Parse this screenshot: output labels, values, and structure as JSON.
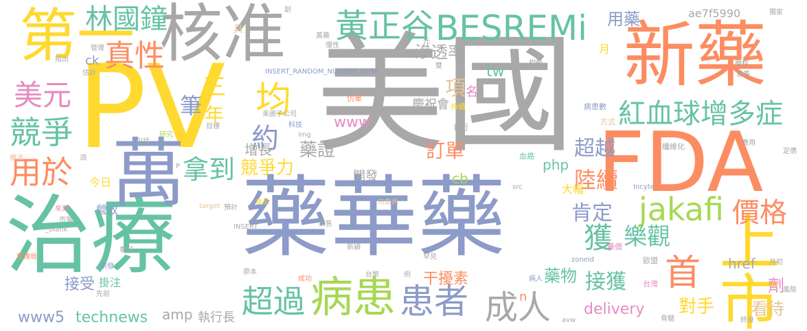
{
  "palette": {
    "gray": "#a8a8a8",
    "slate": "#8c9bc8",
    "yellow": "#ffd92f",
    "orange": "#fc8d62",
    "green": "#66c2a5",
    "lime": "#a6d854",
    "pink": "#e78ac3",
    "tan": "#e5c494"
  },
  "words": [
    {
      "id": "mei-guo",
      "text": "美國",
      "color": "#a8a8a8"
    },
    {
      "id": "pv",
      "text": "PV",
      "color": "#ffd92f"
    },
    {
      "id": "yao-hua-yao",
      "text": "藥華藥",
      "color": "#8c9bc8"
    },
    {
      "id": "zhi-liao",
      "text": "治療",
      "color": "#66c2a5"
    },
    {
      "id": "fda",
      "text": "FDA",
      "color": "#fc8d62"
    },
    {
      "id": "he-zhun",
      "text": "核准",
      "color": "#a8a8a8"
    },
    {
      "id": "xin-yao",
      "text": "新藥",
      "color": "#fc8d62"
    },
    {
      "id": "di-yi",
      "text": "第一",
      "color": "#ffd92f"
    },
    {
      "id": "wan",
      "text": "萬",
      "color": "#8c9bc8"
    },
    {
      "id": "shang-shi",
      "text": "上市",
      "color": "#ffd92f"
    },
    {
      "id": "besremi",
      "text": "BESREMi",
      "color": "#66c2a5"
    },
    {
      "id": "huang-zheng-gu",
      "text": "黃正谷",
      "color": "#66c2a5"
    },
    {
      "id": "bing-huan",
      "text": "病患",
      "color": "#a6d854"
    },
    {
      "id": "huan-zhe",
      "text": "患者",
      "color": "#8c9bc8"
    },
    {
      "id": "hong-xue-qiu",
      "text": "紅血球增多症",
      "color": "#66c2a5"
    },
    {
      "id": "jakafi",
      "text": "jakafi",
      "color": "#a6d854"
    },
    {
      "id": "lin-guo-zhong",
      "text": "林國鐘",
      "color": "#66c2a5"
    },
    {
      "id": "zhen-xing",
      "text": "真性",
      "color": "#fc8d62"
    },
    {
      "id": "mei-yuan",
      "text": "美元",
      "color": "#e78ac3"
    },
    {
      "id": "jing-zheng",
      "text": "競爭",
      "color": "#66c2a5"
    },
    {
      "id": "yong-yu",
      "text": "用於",
      "color": "#fc8d62"
    },
    {
      "id": "chao-guo",
      "text": "超過",
      "color": "#66c2a5"
    },
    {
      "id": "cheng-ren",
      "text": "成人",
      "color": "#a8a8a8"
    },
    {
      "id": "na-dao",
      "text": "拿到",
      "color": "#66c2a5"
    },
    {
      "id": "jun",
      "text": "均",
      "color": "#ffd92f"
    },
    {
      "id": "yue",
      "text": "約",
      "color": "#8c9bc8"
    },
    {
      "id": "san",
      "text": "三",
      "color": "#ffd92f"
    },
    {
      "id": "nian",
      "text": "年",
      "color": "#ffd92f"
    },
    {
      "id": "bi",
      "text": "筆",
      "color": "#8c9bc8"
    },
    {
      "id": "jia-ge",
      "text": "價格",
      "color": "#fc8d62"
    },
    {
      "id": "huo",
      "text": "獲",
      "color": "#66c2a5"
    },
    {
      "id": "ken-ding",
      "text": "肯定",
      "color": "#8c9bc8"
    },
    {
      "id": "le-guan",
      "text": "樂觀",
      "color": "#66c2a5"
    },
    {
      "id": "lu-xu",
      "text": "陸續",
      "color": "#fc8d62"
    },
    {
      "id": "chao-yue",
      "text": "超越",
      "color": "#8c9bc8"
    },
    {
      "id": "ding-dan",
      "text": "訂單",
      "color": "#fc8d62"
    },
    {
      "id": "jing-zheng-li",
      "text": "競爭力",
      "color": "#ffd92f"
    },
    {
      "id": "yao-zheng",
      "text": "藥證",
      "color": "#a8a8a8"
    },
    {
      "id": "zeng-zhang",
      "text": "增長",
      "color": "#a8a8a8"
    },
    {
      "id": "www",
      "text": "www",
      "color": "#e78ac3"
    },
    {
      "id": "xiang",
      "text": "項",
      "color": "#e5c494"
    },
    {
      "id": "shen-tou-lu",
      "text": "滲透率",
      "color": "#a8a8a8"
    },
    {
      "id": "tw",
      "text": "tw",
      "color": "#66c2a5"
    },
    {
      "id": "yong-yao",
      "text": "用藥",
      "color": "#8c9bc8"
    },
    {
      "id": "ae7f",
      "text": "ae7f5990",
      "color": "#a8a8a8"
    },
    {
      "id": "jie-huo",
      "text": "接獲",
      "color": "#66c2a5"
    },
    {
      "id": "shou",
      "text": "首",
      "color": "#fc8d62"
    },
    {
      "id": "dui-shou",
      "text": "對手",
      "color": "#ffd92f"
    },
    {
      "id": "kan-dai",
      "text": "看待",
      "color": "#e5c494"
    },
    {
      "id": "delivery",
      "text": "delivery",
      "color": "#e78ac3"
    },
    {
      "id": "yao-wu",
      "text": "藥物",
      "color": "#66c2a5"
    },
    {
      "id": "gan-rao-su",
      "text": "干擾素",
      "color": "#fc8d62"
    },
    {
      "id": "technews",
      "text": "technews",
      "color": "#66c2a5"
    },
    {
      "id": "www5",
      "text": "www5",
      "color": "#8c9bc8"
    },
    {
      "id": "amp",
      "text": "amp",
      "color": "#a8a8a8"
    },
    {
      "id": "zhi-xing-zhang",
      "text": "執行長",
      "color": "#a8a8a8"
    },
    {
      "id": "jie-shou",
      "text": "接受",
      "color": "#8c9bc8"
    },
    {
      "id": "gua-zhu",
      "text": "掛注",
      "color": "#66c2a5"
    },
    {
      "id": "php",
      "text": "php",
      "color": "#66c2a5"
    },
    {
      "id": "cb",
      "text": "cb",
      "color": "#a6d854"
    },
    {
      "id": "kai-fa",
      "text": "開發",
      "color": "#a8a8a8"
    },
    {
      "id": "qing-zhu-hui",
      "text": "慶祝會",
      "color": "#a8a8a8"
    },
    {
      "id": "href",
      "text": "href",
      "color": "#a8a8a8"
    },
    {
      "id": "ji",
      "text": "劑",
      "color": "#e78ac3"
    },
    {
      "id": "ming",
      "text": "名",
      "color": "#e78ac3"
    },
    {
      "id": "yue-month",
      "text": "月",
      "color": "#ffd92f"
    },
    {
      "id": "ck",
      "text": "ck",
      "color": "#8c9bc8"
    },
    {
      "id": "da-fu",
      "text": "大幅",
      "color": "#ffd92f"
    },
    {
      "id": "jin-ri",
      "text": "今日",
      "color": "#ffd92f"
    },
    {
      "id": "ying-shou",
      "text": "營收",
      "color": "#8c9bc8"
    },
    {
      "id": "a-letter",
      "text": "a",
      "color": "#66c2a5"
    },
    {
      "id": "n-letter",
      "text": "n",
      "color": "#fc8d62"
    },
    {
      "id": "insert-random",
      "text": "INSERT_RANDOM_NUMBER_HERE",
      "color": "#8c9bc8"
    },
    {
      "id": "mei-guo-zi-gong-si",
      "text": "美國子公司",
      "color": "#a8a8a8"
    },
    {
      "id": "ke-ji",
      "text": "科技",
      "color": "#8c9bc8"
    },
    {
      "id": "img",
      "text": "img",
      "color": "#a8a8a8"
    },
    {
      "id": "fang-yao",
      "text": "仿單",
      "color": "#fc8d62"
    },
    {
      "id": "chi-xu",
      "text": "持續",
      "color": "#ffd92f"
    },
    {
      "id": "zi-xing",
      "text": "自行",
      "color": "#a8a8a8"
    },
    {
      "id": "bing-hua-shu",
      "text": "病患數",
      "color": "#8c9bc8"
    },
    {
      "id": "fang-shi",
      "text": "方式",
      "color": "#e5c494"
    },
    {
      "id": "xian-wei-hua",
      "text": "纖維化",
      "color": "#a8a8a8"
    },
    {
      "id": "gui-fei",
      "text": "費用",
      "color": "#a8a8a8"
    },
    {
      "id": "ding-jia",
      "text": "定價",
      "color": "#a8a8a8"
    },
    {
      "id": "xue-ai",
      "text": "血癌",
      "color": "#66c2a5"
    },
    {
      "id": "src",
      "text": "src",
      "color": "#a8a8a8"
    },
    {
      "id": "incyte",
      "text": "Incyte",
      "color": "#8c9bc8"
    },
    {
      "id": "zoneid",
      "text": "zoneid",
      "color": "#8c9bc8"
    },
    {
      "id": "yao-jia",
      "text": "藥價",
      "color": "#e78ac3"
    },
    {
      "id": "ou-meng",
      "text": "歐盟",
      "color": "#a8a8a8"
    },
    {
      "id": "tai-wan",
      "text": "台灣",
      "color": "#e78ac3"
    },
    {
      "id": "mu-biao",
      "text": "目標",
      "color": "#a8a8a8"
    },
    {
      "id": "bao-kuo",
      "text": "包括",
      "color": "#a8a8a8"
    },
    {
      "id": "liao-fa",
      "text": "療法",
      "color": "#e5c494"
    },
    {
      "id": "yan-jiu",
      "text": "研究",
      "color": "#a6d854"
    },
    {
      "id": "lai-yuan",
      "text": "來源",
      "color": "#e78ac3"
    },
    {
      "id": "shi-chang",
      "text": "市場",
      "color": "#a8a8a8"
    },
    {
      "id": "target",
      "text": "target",
      "color": "#e5c494"
    },
    {
      "id": "yu-ji",
      "text": "預計",
      "color": "#a8a8a8"
    },
    {
      "id": "shi-pin",
      "text": "食品",
      "color": "#ffd92f"
    },
    {
      "id": "bai-xue-bing",
      "text": "白血病",
      "color": "#e5c494"
    },
    {
      "id": "blank",
      "text": "_blank",
      "color": "#a8a8a8"
    },
    {
      "id": "insert",
      "text": "INSERT",
      "color": "#a8a8a8"
    },
    {
      "id": "guan-li-ju",
      "text": "管理局",
      "color": "#fc8d62"
    },
    {
      "id": "kan-hao",
      "text": "看好",
      "color": "#a8a8a8"
    },
    {
      "id": "yan-fa",
      "text": "研發",
      "color": "#8c9bc8"
    },
    {
      "id": "xian-qian",
      "text": "先前",
      "color": "#a8a8a8"
    },
    {
      "id": "yuan-ben",
      "text": "原本",
      "color": "#a8a8a8"
    },
    {
      "id": "cheng-gong",
      "text": "成功",
      "color": "#fc8d62"
    },
    {
      "id": "tai-jing",
      "text": "台幣",
      "color": "#a8a8a8"
    },
    {
      "id": "bing-ren",
      "text": "病人",
      "color": "#8c9bc8"
    },
    {
      "id": "han-jian",
      "text": "罕見",
      "color": "#a8a8a8"
    },
    {
      "id": "xin-zhi",
      "text": "新穎",
      "color": "#a8a8a8"
    },
    {
      "id": "xiao-shou",
      "text": "銷售",
      "color": "#a8a8a8"
    },
    {
      "id": "zhi-chu",
      "text": "指出",
      "color": "#a8a8a8"
    },
    {
      "id": "gu-ji",
      "text": "估計",
      "color": "#a8a8a8"
    },
    {
      "id": "guan-li",
      "text": "管理",
      "color": "#a8a8a8"
    },
    {
      "id": "xiang-jiao",
      "text": "相較",
      "color": "#a8a8a8"
    },
    {
      "id": "liao-cheng",
      "text": "療程",
      "color": "#a8a8a8"
    },
    {
      "id": "hui-yi",
      "text": "意義",
      "color": "#a8a8a8"
    },
    {
      "id": "gu-sui",
      "text": "骨髓",
      "color": "#a8a8a8"
    },
    {
      "id": "zhong-shen",
      "text": "終身",
      "color": "#a8a8a8"
    },
    {
      "id": "feng-xian",
      "text": "風險",
      "color": "#a8a8a8"
    },
    {
      "id": "yue-chu",
      "text": "月初",
      "color": "#a8a8a8"
    },
    {
      "id": "avw",
      "text": "avw",
      "color": "#a8a8a8"
    },
    {
      "id": "p-letter",
      "text": "P",
      "color": "#a8a8a8"
    },
    {
      "id": "xu",
      "text": "須",
      "color": "#a8a8a8"
    },
    {
      "id": "li",
      "text": "例",
      "color": "#a8a8a8"
    },
    {
      "id": "shuang",
      "text": "雙",
      "color": "#a8a8a8"
    },
    {
      "id": "chuang",
      "text": "創",
      "color": "#a8a8a8"
    },
    {
      "id": "ju",
      "text": "具",
      "color": "#e5c494"
    },
    {
      "id": "yuan",
      "text": "元",
      "color": "#a8a8a8"
    },
    {
      "id": "ma-yao",
      "text": "萬藥",
      "color": "#a8a8a8"
    },
    {
      "id": "man-xing",
      "text": "慢性",
      "color": "#a8a8a8"
    },
    {
      "id": "du-jia",
      "text": "獨家",
      "color": "#a8a8a8"
    }
  ]
}
